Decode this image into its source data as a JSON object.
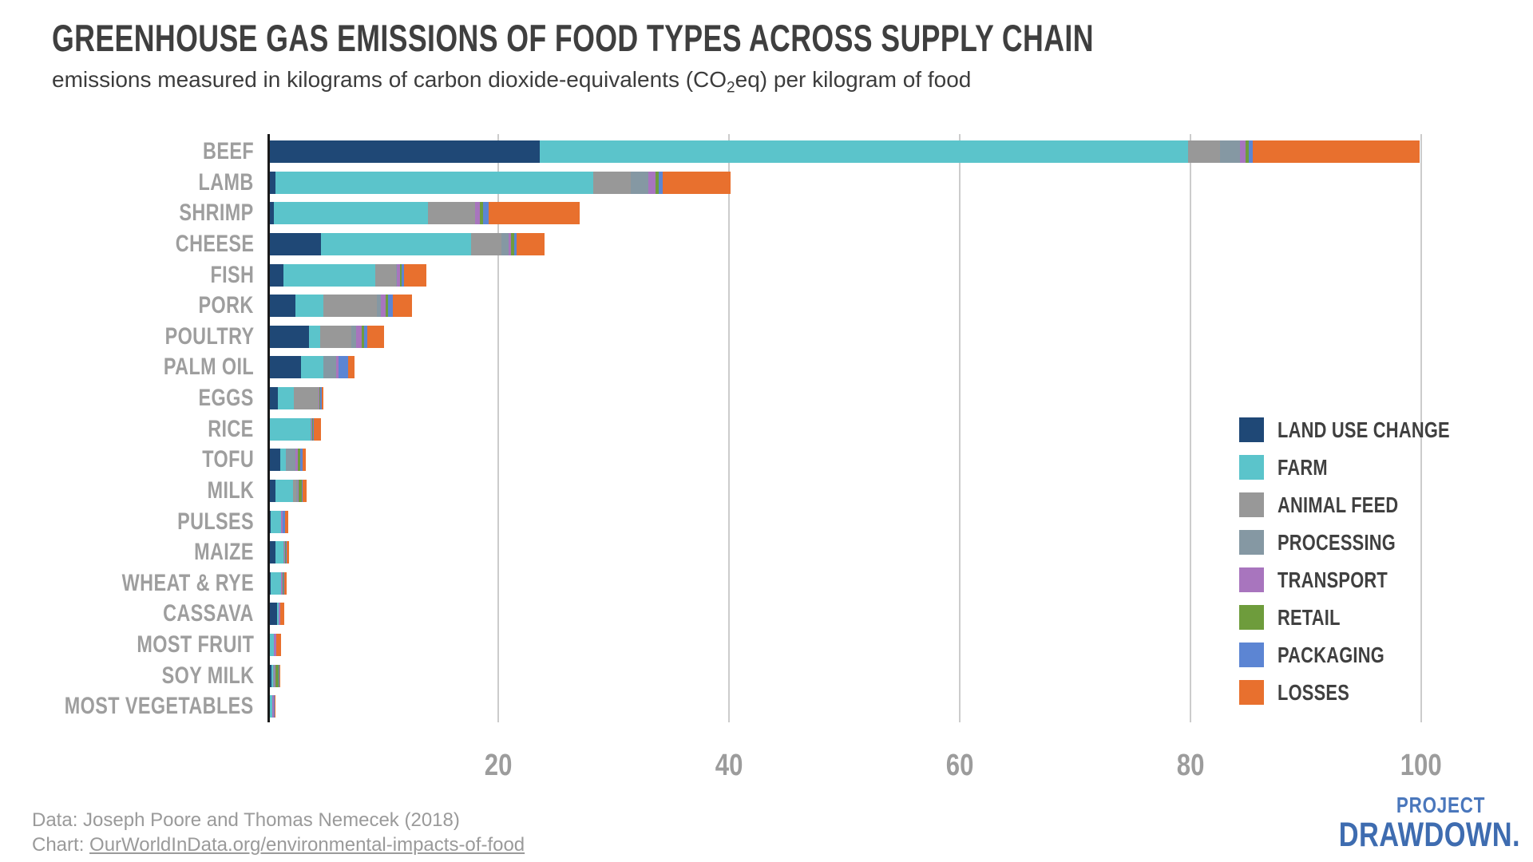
{
  "title": "GREENHOUSE GAS EMISSIONS OF FOOD TYPES ACROSS SUPPLY CHAIN",
  "subtitle": {
    "pre": "emissions measured in kilograms of carbon dioxide-equivalents (CO",
    "sub": "2",
    "post": "eq) per kilogram of food"
  },
  "chart_data": {
    "type": "bar",
    "orientation": "horizontal-stacked",
    "value_unit": "kg CO2eq per kg of food",
    "xlim": [
      0,
      106
    ],
    "x_ticks": [
      20,
      40,
      60,
      80,
      100
    ],
    "grid": true,
    "legend_position": "right",
    "categories": [
      "BEEF",
      "LAMB",
      "SHRIMP",
      "CHEESE",
      "FISH",
      "PORK",
      "POULTRY",
      "PALM OIL",
      "EGGS",
      "RICE",
      "TOFU",
      "MILK",
      "PULSES",
      "MAIZE",
      "WHEAT & RYE",
      "CASSAVA",
      "MOST FRUIT",
      "SOY MILK",
      "MOST VEGETABLES"
    ],
    "series": [
      {
        "name": "LAND USE CHANGE",
        "color": "#1F4876",
        "values": [
          23.4,
          0.5,
          0.33,
          4.4,
          1.2,
          2.2,
          3.4,
          2.7,
          0.7,
          0.03,
          0.9,
          0.5,
          0.05,
          0.45,
          0.05,
          0.65,
          0.02,
          0.12,
          0
        ]
      },
      {
        "name": "FARM",
        "color": "#5BC4CB",
        "values": [
          56.2,
          27.5,
          13.4,
          13.05,
          7.95,
          2.45,
          0.95,
          1.95,
          1.35,
          3.48,
          0.5,
          1.5,
          0.95,
          0.7,
          0.9,
          0.1,
          0.35,
          0.18,
          0.22
        ]
      },
      {
        "name": "ANIMAL FEED",
        "color": "#989898",
        "values": [
          2.75,
          3.3,
          4.05,
          2.6,
          1.8,
          4.65,
          2.7,
          0,
          2.15,
          0,
          0,
          0.25,
          0,
          0,
          0,
          0,
          0,
          0,
          0
        ]
      },
      {
        "name": "PROCESSING",
        "color": "#8598A3",
        "values": [
          1.7,
          1.5,
          0,
          0.65,
          0.05,
          0.33,
          0.4,
          1.1,
          0,
          0.07,
          0.8,
          0.15,
          0,
          0.08,
          0.05,
          0,
          0,
          0.13,
          0.02
        ]
      },
      {
        "name": "TRANSPORT",
        "color": "#A875BE",
        "values": [
          0.5,
          0.6,
          0.4,
          0.2,
          0.3,
          0.4,
          0.5,
          0.2,
          0.1,
          0.1,
          0.2,
          0.1,
          0.1,
          0.09,
          0.13,
          0.13,
          0.16,
          0.08,
          0.1
        ]
      },
      {
        "name": "RETAIL",
        "color": "#6E9C3C",
        "values": [
          0.3,
          0.3,
          0.3,
          0.28,
          0.09,
          0.23,
          0.25,
          0.02,
          0.05,
          0.06,
          0.25,
          0.27,
          0.04,
          0.04,
          0.06,
          0,
          0.02,
          0.22,
          0.02
        ]
      },
      {
        "name": "PACKAGING",
        "color": "#5C85D3",
        "values": [
          0.35,
          0.35,
          0.5,
          0.18,
          0.25,
          0.43,
          0.25,
          0.8,
          0.16,
          0.08,
          0.2,
          0.1,
          0.2,
          0.09,
          0.09,
          0.04,
          0.04,
          0.12,
          0.04
        ]
      },
      {
        "name": "LOSSES",
        "color": "#E8702E",
        "values": [
          14.45,
          5.9,
          7.85,
          2.45,
          1.95,
          1.6,
          1.45,
          0.6,
          0.15,
          0.61,
          0.3,
          0.33,
          0.25,
          0.2,
          0.18,
          0.3,
          0.4,
          0.05,
          0.08
        ]
      }
    ],
    "approx_totals": [
      99.65,
      39.95,
      26.83,
      23.81,
      13.59,
      12.29,
      9.9,
      7.37,
      4.66,
      4.43,
      3.15,
      3.2,
      1.59,
      1.65,
      1.46,
      1.22,
      0.99,
      0.9,
      0.48
    ]
  },
  "colors": {
    "gridline": "#cccccc",
    "axis_line": "#1a1a1a",
    "category_label": "#9e9e9e",
    "tick_label": "#9c9c9c",
    "title": "#3f3f3f",
    "footer": "#9a9a9a",
    "logo_blue": "#3e6cb0"
  },
  "footer": {
    "data_source": "Data: Joseph Poore and Thomas Nemecek (2018)",
    "chart_prefix": "Chart: ",
    "chart_link": "OurWorldInData.org/environmental-impacts-of-food"
  },
  "logo": {
    "top": "PROJECT",
    "bottom": "DRAWDOWN."
  }
}
